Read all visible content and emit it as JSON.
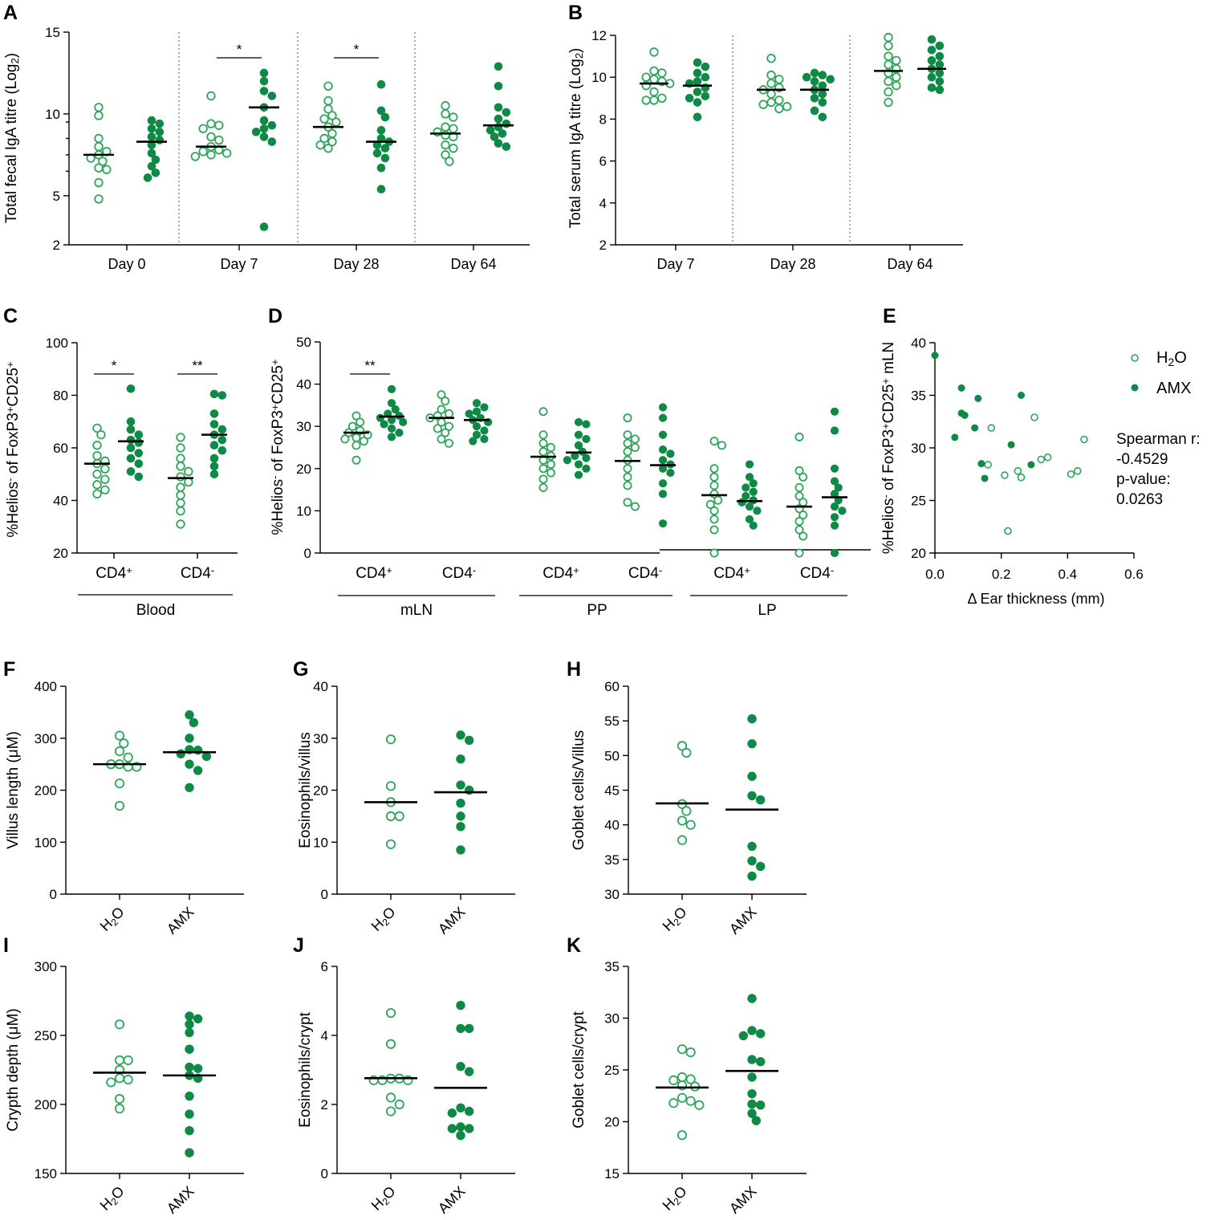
{
  "colors": {
    "h2o": "#2ea55a",
    "amx": "#0f8a46"
  },
  "chart_data": [
    {
      "panel": "A",
      "type": "scatter",
      "ylabel_pre": "Total fecal IgA titre (Log",
      "ylabel_sub": "2",
      "ylabel_post": ")",
      "ylim": [
        2,
        15
      ],
      "yticks": [
        2,
        5,
        10,
        15
      ],
      "groups": [
        {
          "label": "Day 0",
          "h2o": [
            10.4,
            9.9,
            8.5,
            8.0,
            7.7,
            7.5,
            7.3,
            7.1,
            6.7,
            6.6,
            5.8,
            4.8
          ],
          "h2o_mean": 7.5,
          "amx": [
            9.6,
            9.4,
            9.1,
            8.9,
            8.6,
            8.4,
            8.1,
            7.6,
            7.2,
            6.8,
            6.4,
            6.1
          ],
          "amx_mean": 8.3
        },
        {
          "label": "Day 7",
          "h2o": [
            11.1,
            9.4,
            9.3,
            9.1,
            8.6,
            8.4,
            8.0,
            7.8,
            7.7,
            7.6,
            7.5,
            7.4
          ],
          "h2o_mean": 8.0,
          "amx": [
            12.5,
            12.0,
            11.4,
            11.1,
            10.4,
            9.6,
            9.3,
            9.1,
            8.9,
            8.6,
            8.3,
            3.1
          ],
          "amx_mean": 10.4,
          "sig": "*"
        },
        {
          "label": "Day 28",
          "h2o": [
            11.7,
            10.8,
            10.3,
            9.9,
            9.7,
            9.5,
            9.2,
            8.8,
            8.5,
            8.3,
            8.1,
            7.9
          ],
          "h2o_mean": 9.2,
          "amx": [
            11.8,
            10.2,
            9.8,
            9.0,
            8.5,
            8.3,
            8.1,
            7.9,
            7.6,
            7.3,
            6.7,
            5.4
          ],
          "amx_mean": 8.3,
          "sig": "*"
        },
        {
          "label": "Day 64",
          "h2o": [
            10.5,
            10.0,
            9.8,
            9.2,
            9.1,
            8.9,
            8.7,
            8.6,
            8.1,
            7.9,
            7.5,
            7.1
          ],
          "h2o_mean": 8.8,
          "amx": [
            12.9,
            11.7,
            10.4,
            10.1,
            9.7,
            9.4,
            9.2,
            9.0,
            8.8,
            8.6,
            8.2,
            8.0
          ],
          "amx_mean": 9.3
        }
      ]
    },
    {
      "panel": "B",
      "type": "scatter",
      "ylabel_pre": "Total serum IgA titre (Log",
      "ylabel_sub": "2",
      "ylabel_post": ")",
      "ylim": [
        2,
        12
      ],
      "yticks": [
        2,
        4,
        6,
        8,
        10,
        12
      ],
      "groups": [
        {
          "label": "Day 7",
          "h2o": [
            11.2,
            10.3,
            10.2,
            10.0,
            9.9,
            9.8,
            9.7,
            9.6,
            9.3,
            9.0,
            8.9,
            8.9
          ],
          "h2o_mean": 9.7,
          "amx": [
            10.7,
            10.5,
            10.2,
            10.0,
            9.8,
            9.7,
            9.5,
            9.3,
            9.1,
            9.0,
            8.8,
            8.1
          ],
          "amx_mean": 9.6
        },
        {
          "label": "Day 28",
          "h2o": [
            10.9,
            10.1,
            9.9,
            9.7,
            9.5,
            9.4,
            9.2,
            8.9,
            8.8,
            8.7,
            8.6,
            8.5
          ],
          "h2o_mean": 9.4,
          "amx": [
            10.2,
            10.1,
            10.0,
            9.9,
            9.8,
            9.6,
            9.4,
            9.2,
            9.0,
            8.8,
            8.4,
            8.1
          ],
          "amx_mean": 9.4
        },
        {
          "label": "Day 64",
          "h2o": [
            11.9,
            11.5,
            11.0,
            10.8,
            10.6,
            10.4,
            10.2,
            10.0,
            9.8,
            9.6,
            9.3,
            8.8
          ],
          "h2o_mean": 10.3,
          "amx": [
            11.8,
            11.5,
            11.3,
            11.0,
            10.8,
            10.6,
            10.4,
            10.2,
            10.0,
            9.8,
            9.5,
            9.4
          ],
          "amx_mean": 10.4
        }
      ]
    },
    {
      "panel": "C",
      "type": "scatter",
      "ylabel_pre": "%Helios",
      "ylabel_sup1": "-",
      "ylabel_mid": " of FoxP3",
      "ylabel_sup2": "+",
      "ylabel_mid2": "CD25",
      "ylabel_sup3": "+",
      "ylim": [
        20,
        100
      ],
      "yticks": [
        20,
        40,
        60,
        80,
        100
      ],
      "groups": [
        {
          "label": "CD4",
          "sup": "+",
          "h2o": [
            67.5,
            65.0,
            61.0,
            57.0,
            55.0,
            54.0,
            52.0,
            50.0,
            48.0,
            46.0,
            44.0,
            42.5
          ],
          "h2o_mean": 54.0,
          "amx": [
            82.5,
            70.0,
            67.0,
            65.0,
            63.0,
            62.0,
            60.0,
            58.0,
            56.0,
            54.0,
            51.0,
            49.0
          ],
          "amx_mean": 62.5,
          "sig": "*"
        },
        {
          "label": "CD4",
          "sup": "-",
          "h2o": [
            64.0,
            60.0,
            56.0,
            53.0,
            51.0,
            49.0,
            47.0,
            45.0,
            42.0,
            39.0,
            36.0,
            31.0
          ],
          "h2o_mean": 48.5,
          "amx": [
            80.5,
            80.0,
            73.0,
            69.0,
            67.0,
            65.0,
            63.0,
            61.0,
            59.0,
            56.0,
            53.0,
            50.0
          ],
          "amx_mean": 65.0,
          "sig": "**"
        }
      ],
      "categories": [
        {
          "label": "Blood"
        }
      ]
    },
    {
      "panel": "D",
      "type": "scatter",
      "ylabel_pre": "%Helios",
      "ylabel_sup1": "-",
      "ylabel_mid": " of FoxP3",
      "ylabel_sup2": "+",
      "ylabel_mid2": "CD25",
      "ylabel_sup3": "+",
      "ylim": [
        0,
        50
      ],
      "yticks": [
        0,
        10,
        20,
        30,
        40,
        50
      ],
      "groups": [
        {
          "label": "CD4",
          "sup": "+",
          "h2o": [
            32.5,
            31.0,
            30.0,
            29.0,
            28.5,
            28.0,
            27.7,
            27.3,
            27.0,
            26.5,
            25.5,
            22.0
          ],
          "h2o_mean": 28.5,
          "amx": [
            38.8,
            35.5,
            34.0,
            33.0,
            32.5,
            32.0,
            31.5,
            31.0,
            30.5,
            29.5,
            28.5,
            27.5
          ],
          "amx_mean": 32.3,
          "sig": "**"
        },
        {
          "label": "CD4",
          "sup": "-",
          "h2o": [
            37.5,
            36.0,
            34.0,
            33.0,
            32.5,
            32.0,
            31.0,
            30.0,
            29.5,
            28.5,
            27.0,
            26.0
          ],
          "h2o_mean": 32.0,
          "amx": [
            35.5,
            34.5,
            33.5,
            33.0,
            32.0,
            31.5,
            31.0,
            30.0,
            29.0,
            28.0,
            27.0,
            26.5
          ],
          "amx_mean": 31.5
        },
        {
          "label": "CD4",
          "sup": "+",
          "h2o": [
            33.5,
            28.0,
            26.0,
            25.0,
            24.0,
            23.0,
            22.0,
            21.0,
            20.0,
            19.0,
            17.5,
            15.5
          ],
          "h2o_mean": 22.8,
          "amx": [
            31.0,
            30.5,
            28.0,
            27.0,
            25.5,
            24.0,
            23.0,
            22.5,
            22.0,
            21.0,
            20.0,
            18.5
          ],
          "amx_mean": 23.8
        },
        {
          "label": "CD4",
          "sup": "-",
          "h2o": [
            32.0,
            28.0,
            27.0,
            26.0,
            25.0,
            24.0,
            22.0,
            20.0,
            18.0,
            16.0,
            12.0,
            11.0
          ],
          "h2o_mean": 21.8,
          "amx": [
            34.5,
            32.0,
            28.0,
            24.5,
            23.5,
            22.0,
            21.0,
            20.0,
            19.0,
            16.5,
            14.0,
            7.0
          ],
          "amx_mean": 20.8
        },
        {
          "label": "CD4",
          "sup": "+",
          "h2o": [
            26.5,
            25.5,
            20.0,
            18.0,
            16.0,
            14.0,
            12.5,
            11.5,
            10.0,
            8.0,
            5.5,
            0.0
          ],
          "h2o_mean": 13.7,
          "amx": [
            21.0,
            18.0,
            16.5,
            15.5,
            14.5,
            13.5,
            12.5,
            12.0,
            11.0,
            10.0,
            8.0,
            6.5
          ],
          "amx_mean": 12.3
        },
        {
          "label": "CD4",
          "sup": "-",
          "h2o": [
            27.5,
            19.5,
            18.0,
            15.5,
            13.5,
            12.0,
            10.5,
            9.0,
            7.5,
            5.5,
            4.0,
            0.0
          ],
          "h2o_mean": 11.0,
          "amx": [
            33.5,
            29.0,
            20.0,
            17.0,
            15.5,
            14.0,
            12.5,
            11.0,
            10.0,
            8.5,
            6.5,
            0.0
          ],
          "amx_mean": 13.2
        }
      ],
      "categories": [
        {
          "label": "mLN"
        },
        {
          "label": "PP"
        },
        {
          "label": "LP"
        }
      ]
    },
    {
      "panel": "E",
      "type": "scatter",
      "ylabel_pre": "%Helios",
      "ylabel_sup1": "-",
      "ylabel_mid": " of FoxP3",
      "ylabel_sup2": "+",
      "ylabel_mid2": "CD25",
      "ylabel_sup3": "+",
      "ylabel_post": " mLN",
      "xlabel": "Δ Ear thickness (mm)",
      "xlim": [
        0,
        0.6
      ],
      "xticks": [
        "0.0",
        "0.2",
        "0.4",
        "0.6"
      ],
      "ylim": [
        20,
        40
      ],
      "yticks": [
        20,
        25,
        30,
        35,
        40
      ],
      "h2o_points": [
        [
          0.17,
          31.9
        ],
        [
          0.16,
          28.4
        ],
        [
          0.21,
          27.4
        ],
        [
          0.25,
          27.8
        ],
        [
          0.26,
          27.2
        ],
        [
          0.22,
          22.1
        ],
        [
          0.3,
          32.9
        ],
        [
          0.32,
          28.9
        ],
        [
          0.34,
          29.1
        ],
        [
          0.41,
          27.5
        ],
        [
          0.43,
          27.8
        ],
        [
          0.45,
          30.8
        ]
      ],
      "amx_points": [
        [
          0.0,
          38.8
        ],
        [
          0.06,
          31.0
        ],
        [
          0.08,
          33.3
        ],
        [
          0.09,
          33.1
        ],
        [
          0.08,
          35.7
        ],
        [
          0.12,
          31.9
        ],
        [
          0.13,
          34.7
        ],
        [
          0.14,
          28.5
        ],
        [
          0.15,
          27.1
        ],
        [
          0.23,
          30.3
        ],
        [
          0.26,
          35.0
        ],
        [
          0.29,
          28.4
        ]
      ],
      "legend": {
        "h2o": "H2O",
        "amx": "AMX"
      },
      "stats": {
        "line1": "Spearman r:",
        "line2": "-0.4529",
        "line3": "p-value:",
        "line4": "0.0263"
      }
    },
    {
      "panel": "F",
      "type": "scatter",
      "ylabel": "Villus length (μM)",
      "ylim": [
        0,
        400
      ],
      "yticks": [
        0,
        100,
        200,
        300,
        400
      ],
      "h2o": [
        305,
        290,
        275,
        263,
        250,
        250,
        245,
        245,
        213,
        170
      ],
      "h2o_mean": 250,
      "amx": [
        345,
        330,
        300,
        278,
        277,
        270,
        265,
        250,
        238,
        205
      ],
      "amx_mean": 273
    },
    {
      "panel": "G",
      "type": "scatter",
      "ylabel": "Eosinophils/villus",
      "ylim": [
        0,
        40
      ],
      "yticks": [
        0,
        10,
        20,
        30,
        40
      ],
      "h2o": [
        29.8,
        20.8,
        17.7,
        15.0,
        15.0,
        9.6
      ],
      "h2o_mean": 17.7,
      "amx": [
        30.6,
        29.6,
        26.0,
        21.0,
        20.0,
        17.5,
        15.0,
        13.0,
        8.5
      ],
      "amx_mean": 19.6
    },
    {
      "panel": "H",
      "type": "scatter",
      "ylabel": "Goblet cells/Villus",
      "ylim": [
        30,
        60
      ],
      "yticks": [
        30,
        35,
        40,
        45,
        50,
        55,
        60
      ],
      "h2o": [
        51.4,
        50.4,
        43.0,
        42.0,
        40.6,
        40.0,
        37.8
      ],
      "h2o_mean": 43.1,
      "amx": [
        55.3,
        51.7,
        47.0,
        44.2,
        43.6,
        36.9,
        34.8,
        34.0,
        32.6
      ],
      "amx_mean": 42.2
    },
    {
      "panel": "I",
      "type": "scatter",
      "ylabel": "Crypth depth (μM)",
      "ylim": [
        150,
        300
      ],
      "yticks": [
        150,
        200,
        250,
        300
      ],
      "h2o": [
        258,
        232,
        232,
        225,
        219,
        218,
        216,
        204,
        197
      ],
      "h2o_mean": 223,
      "amx": [
        264,
        262,
        258,
        252,
        240,
        227,
        226,
        221,
        219,
        206,
        193,
        181,
        165
      ],
      "amx_mean": 221
    },
    {
      "panel": "J",
      "type": "scatter",
      "ylabel": "Eosinophils/crypt",
      "ylim": [
        0,
        6
      ],
      "yticks": [
        0,
        2,
        4,
        6
      ],
      "h2o": [
        4.65,
        3.75,
        2.75,
        2.75,
        2.7,
        2.7,
        2.7,
        2.2,
        2.0,
        1.8
      ],
      "h2o_mean": 2.76,
      "amx": [
        4.87,
        4.2,
        4.2,
        3.1,
        2.95,
        1.9,
        1.8,
        1.75,
        1.35,
        1.3,
        1.3,
        1.1
      ],
      "amx_mean": 2.48
    },
    {
      "panel": "K",
      "type": "scatter",
      "ylabel": "Goblet cells/crypt",
      "ylim": [
        15,
        35
      ],
      "yticks": [
        15,
        20,
        25,
        30,
        35
      ],
      "h2o": [
        27.0,
        26.7,
        24.3,
        24.1,
        24.0,
        23.5,
        23.4,
        22.3,
        22.0,
        21.8,
        21.6,
        18.7
      ],
      "h2o_mean": 23.3,
      "amx": [
        31.9,
        28.8,
        28.5,
        28.3,
        26.0,
        25.8,
        24.3,
        22.7,
        21.7,
        21.6,
        20.8,
        20.1
      ],
      "amx_mean": 24.9
    }
  ],
  "xcats": {
    "h2o_pre": "H",
    "h2o_sub": "2",
    "h2o_post": "O",
    "amx": "AMX"
  }
}
